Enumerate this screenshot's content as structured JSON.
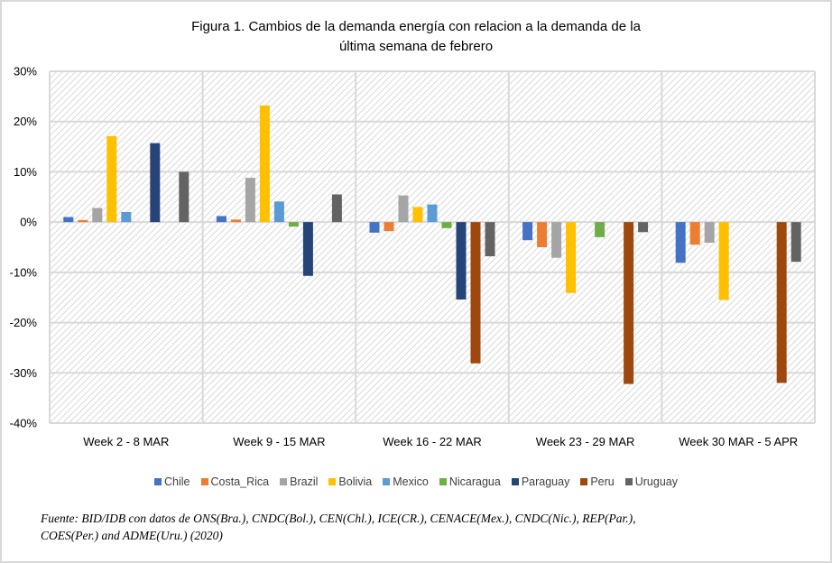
{
  "chart_data": {
    "type": "bar",
    "title": "Figura 1. Cambios de la demanda energía con relacion a la demanda de la última semana de febrero",
    "title_lines": [
      "Figura 1. Cambios de la demanda energía con relacion a la demanda de la",
      "última semana de febrero"
    ],
    "xlabel": "",
    "ylabel": "",
    "ylim": [
      -0.4,
      0.3
    ],
    "yticks": [
      0.3,
      0.2,
      0.1,
      0.0,
      -0.1,
      -0.2,
      -0.3,
      -0.4
    ],
    "ytick_labels": [
      "30%",
      "20%",
      "10%",
      "0%",
      "-10%",
      "-20%",
      "-30%",
      "-40%"
    ],
    "grid": true,
    "legend_position": "bottom",
    "categories": [
      "Week 2 - 8 MAR",
      "Week 9 - 15 MAR",
      "Week 16 - 22 MAR",
      "Week 23 - 29 MAR",
      "Week 30 MAR - 5 APR"
    ],
    "series": [
      {
        "name": "Chile",
        "color": "#4472C4",
        "values": [
          0.01,
          0.012,
          -0.021,
          -0.036,
          -0.081
        ]
      },
      {
        "name": "Costa_Rica",
        "color": "#ED7D31",
        "values": [
          0.004,
          0.005,
          -0.018,
          -0.05,
          -0.045
        ]
      },
      {
        "name": "Brazil",
        "color": "#A5A5A5",
        "values": [
          0.028,
          0.088,
          0.053,
          -0.071,
          -0.041
        ]
      },
      {
        "name": "Bolivia",
        "color": "#FFC000",
        "values": [
          0.171,
          0.232,
          0.03,
          -0.141,
          -0.155
        ]
      },
      {
        "name": "Mexico",
        "color": "#5B9BD5",
        "values": [
          0.02,
          0.041,
          0.035,
          null,
          null
        ]
      },
      {
        "name": "Nicaragua",
        "color": "#70AD47",
        "values": [
          null,
          -0.009,
          -0.012,
          -0.03,
          null
        ]
      },
      {
        "name": "Paraguay",
        "color": "#264478",
        "values": [
          0.157,
          -0.107,
          -0.154,
          null,
          null
        ]
      },
      {
        "name": "Peru",
        "color": "#9E480E",
        "values": [
          null,
          null,
          -0.281,
          -0.322,
          -0.32
        ]
      },
      {
        "name": "Uruguay",
        "color": "#636363",
        "values": [
          0.1,
          0.055,
          -0.068,
          -0.02,
          -0.079
        ]
      }
    ]
  },
  "source_lines": [
    "Fuente: BID/IDB con datos de ONS(Bra.), CNDC(Bol.), CEN(Chl.), ICE(CR.), CENACE(Mex.), CNDC(Nic.), REP(Par.),",
    "COES(Per.) and ADME(Uru.) (2020)"
  ]
}
